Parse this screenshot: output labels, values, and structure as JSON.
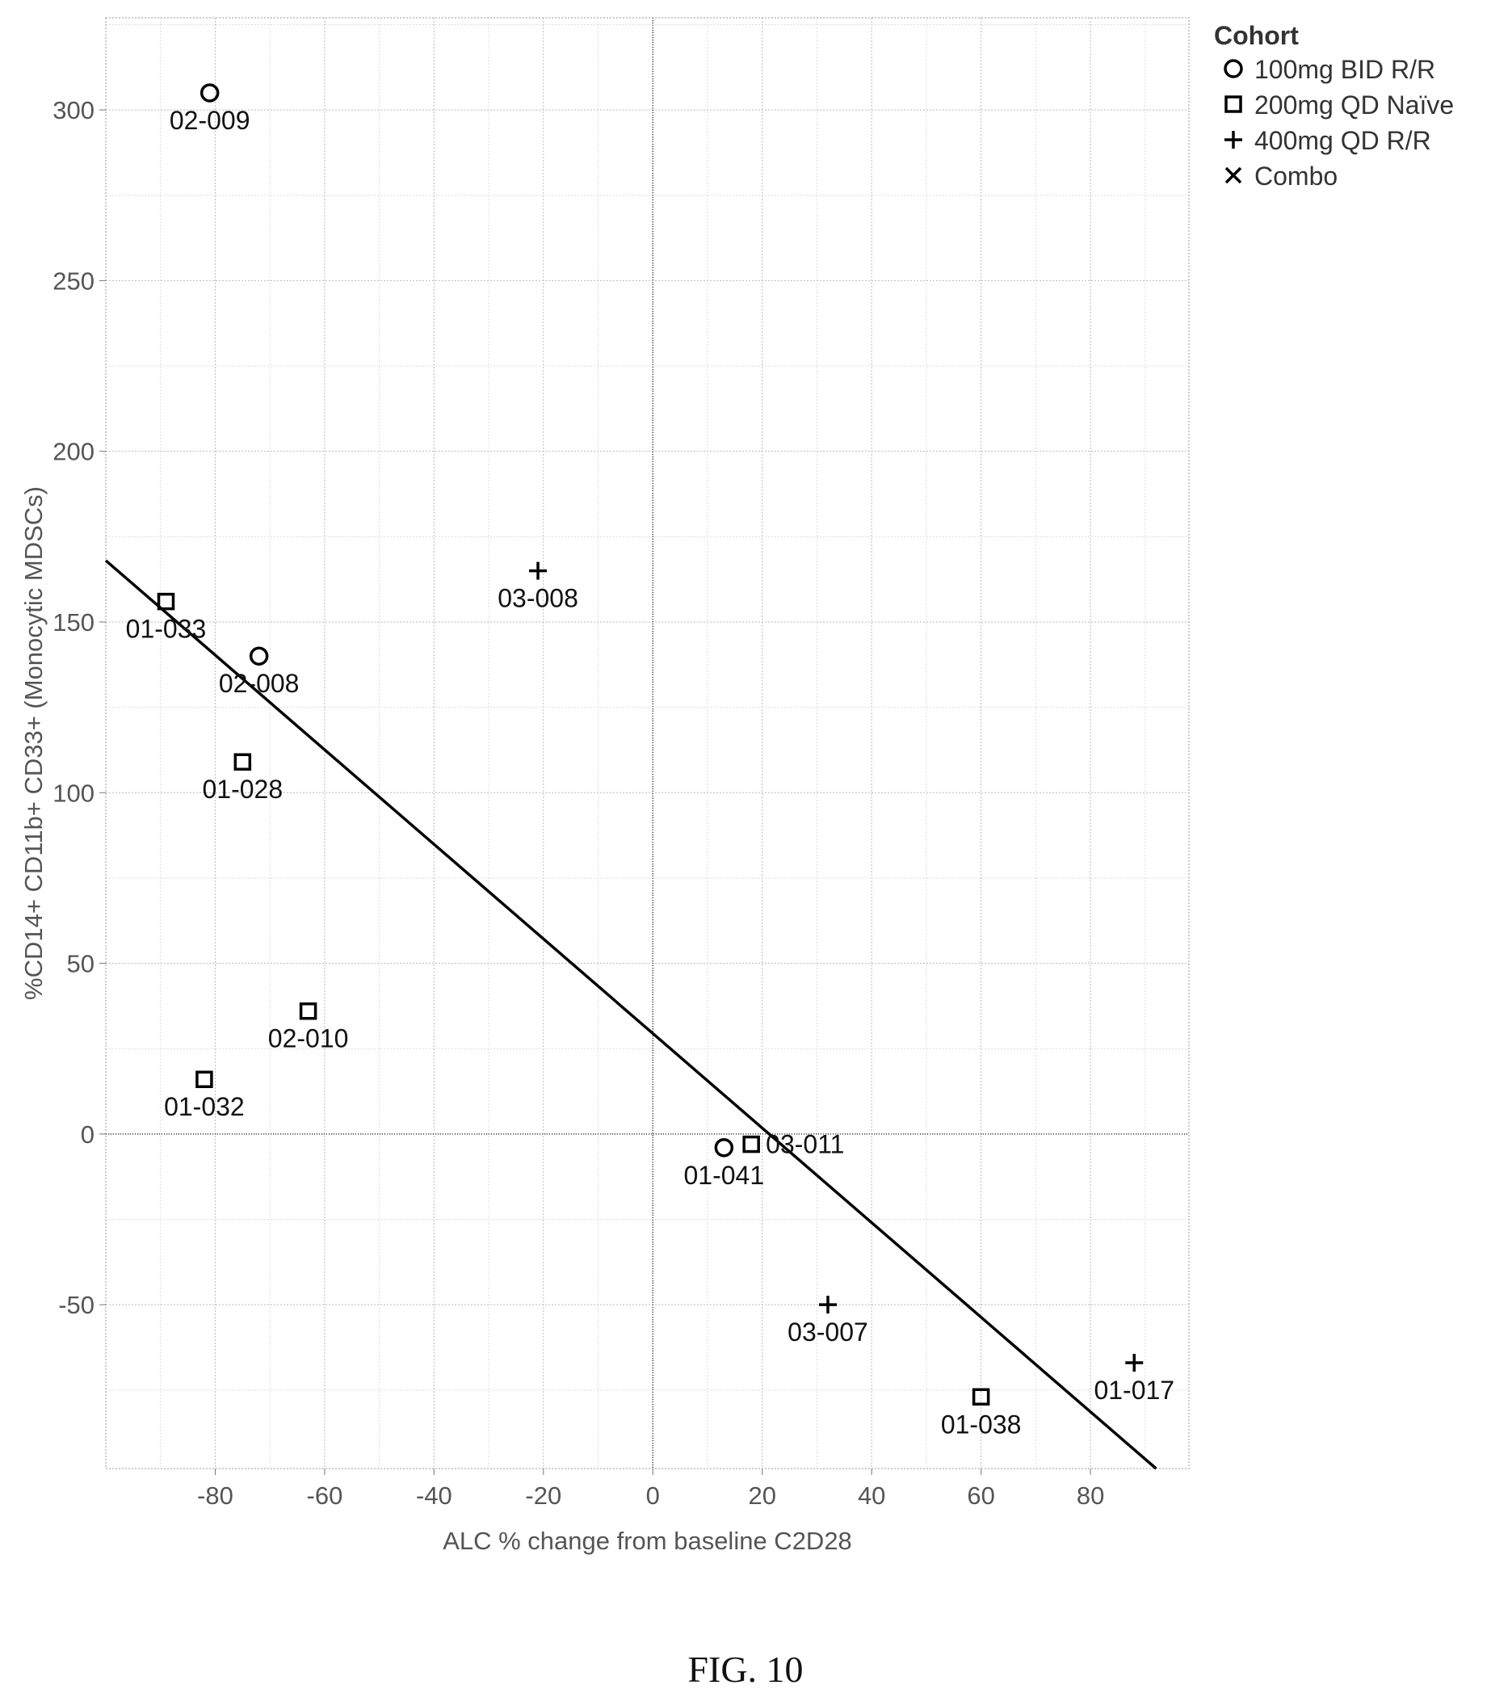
{
  "chart_data": {
    "type": "scatter",
    "title": "",
    "xlabel": "ALC % change from baseline C2D28",
    "ylabel": "%CD14+ CD11b+ CD33+ (Monocytic MDSCs)",
    "xlim": [
      -100,
      98
    ],
    "ylim": [
      -98,
      327
    ],
    "x_ticks": [
      -80,
      -60,
      -40,
      -20,
      0,
      20,
      40,
      60,
      80
    ],
    "y_ticks": [
      -50,
      0,
      50,
      100,
      150,
      200,
      250,
      300
    ],
    "grid": true,
    "legend": {
      "title": "Cohort",
      "position": "top-right",
      "entries": [
        {
          "marker": "circle",
          "label": "100mg BID R/R"
        },
        {
          "marker": "square",
          "label": "200mg QD Naïve"
        },
        {
          "marker": "plus",
          "label": "400mg QD R/R"
        },
        {
          "marker": "cross",
          "label": "Combo"
        }
      ]
    },
    "series": [
      {
        "name": "100mg BID R/R",
        "marker": "circle",
        "points": [
          {
            "x": -81,
            "y": 305,
            "label": "02-009"
          },
          {
            "x": -72,
            "y": 140,
            "label": "02-008"
          },
          {
            "x": 13,
            "y": -4,
            "label": "01-041"
          }
        ]
      },
      {
        "name": "200mg QD Naïve",
        "marker": "square",
        "points": [
          {
            "x": -89,
            "y": 156,
            "label": "01-033"
          },
          {
            "x": -75,
            "y": 109,
            "label": "01-028"
          },
          {
            "x": -63,
            "y": 36,
            "label": "02-010"
          },
          {
            "x": -82,
            "y": 16,
            "label": "01-032"
          },
          {
            "x": 18,
            "y": -3,
            "label": "03-011"
          },
          {
            "x": 60,
            "y": -77,
            "label": "01-038"
          }
        ]
      },
      {
        "name": "400mg QD R/R",
        "marker": "plus",
        "points": [
          {
            "x": -21,
            "y": 165,
            "label": "03-008"
          },
          {
            "x": 32,
            "y": -50,
            "label": "03-007"
          },
          {
            "x": 88,
            "y": -67,
            "label": "01-017"
          }
        ]
      }
    ],
    "regression_line": {
      "x": [
        -100,
        92
      ],
      "y": [
        168,
        -98
      ]
    },
    "reference_lines": {
      "x": 0,
      "y": 0
    }
  },
  "caption": "FIG. 10"
}
